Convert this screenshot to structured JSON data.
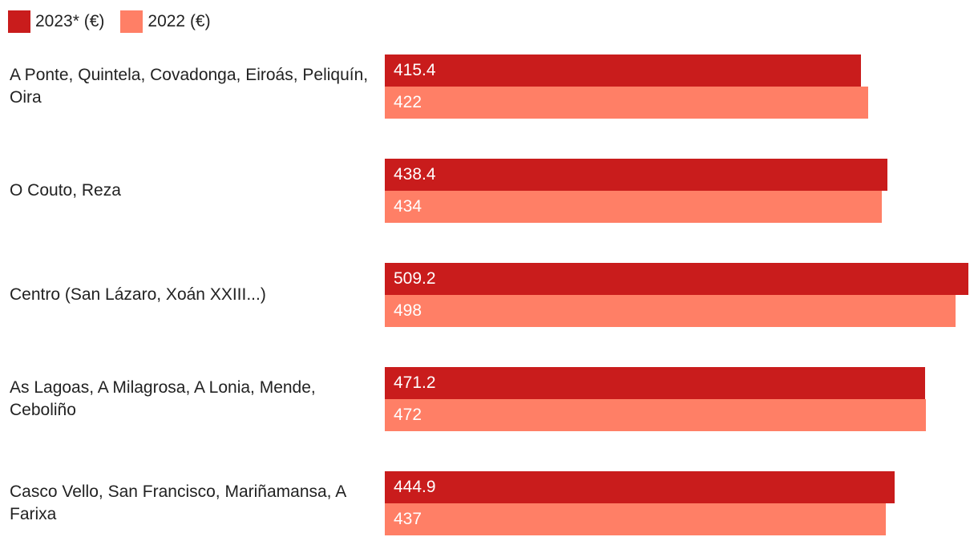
{
  "chart_data": {
    "type": "bar",
    "orientation": "horizontal",
    "categories": [
      "A Ponte, Quintela, Covadonga, Eiroás, Peliquín, Oira",
      "O Couto, Reza",
      "Centro (San Lázaro, Xoán XXIII...)",
      "As Lagoas, A Milagrosa, A Lonia, Mende, Ceboliño",
      "Casco Vello, San Francisco, Mariñamansa, A Farixa"
    ],
    "series": [
      {
        "name": "2023* (€)",
        "color": "#c91c1c",
        "values": [
          415.4,
          438.4,
          509.2,
          471.2,
          444.9
        ]
      },
      {
        "name": "2022 (€)",
        "color": "#ff7f66",
        "values": [
          422,
          434,
          498,
          472,
          437
        ]
      }
    ],
    "legend": "top-left"
  }
}
